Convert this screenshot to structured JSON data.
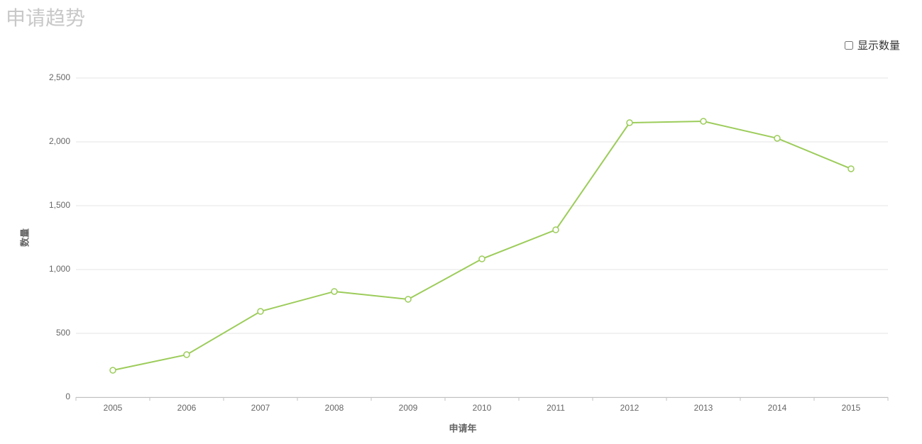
{
  "chart_data": {
    "type": "line",
    "title": "申请趋势",
    "toggle_label": "显示数量",
    "x_label": "申请年",
    "y_label": "数量",
    "categories": [
      "2005",
      "2006",
      "2007",
      "2008",
      "2009",
      "2010",
      "2011",
      "2012",
      "2013",
      "2014",
      "2015"
    ],
    "series": [
      {
        "name": "数量",
        "color": "#9ccc5a",
        "values": [
          211,
          333,
          672,
          828,
          767,
          1083,
          1311,
          2150,
          2161,
          2028,
          1789
        ]
      }
    ],
    "ylim": [
      0,
      2500
    ],
    "yticks": [
      0,
      {
        "value": 500,
        "label": "500"
      },
      {
        "value": 1000,
        "label": "1,000"
      },
      {
        "value": 1500,
        "label": "1,500"
      },
      {
        "value": 2000,
        "label": "2,000"
      },
      {
        "value": 2500,
        "label": "2,500"
      }
    ],
    "grid": true
  }
}
